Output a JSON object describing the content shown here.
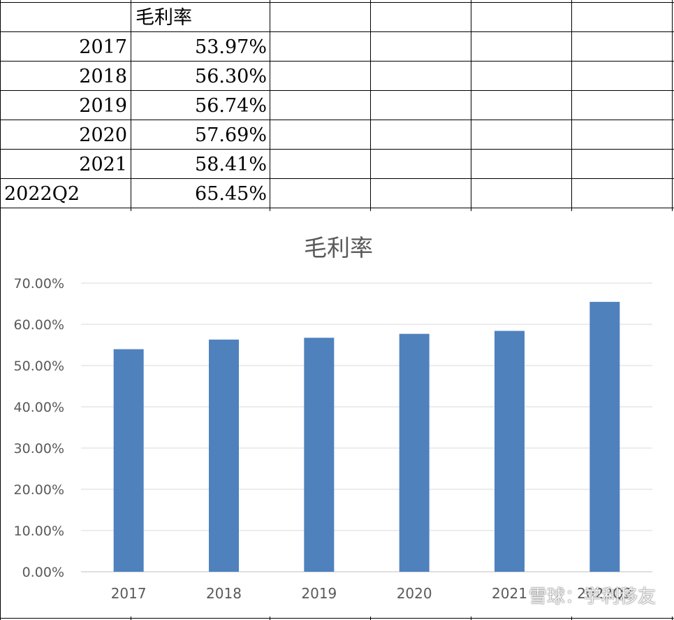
{
  "table": {
    "header": "毛利率",
    "rows": [
      {
        "year": "2017",
        "value": "53.97%"
      },
      {
        "year": "2018",
        "value": "56.30%"
      },
      {
        "year": "2019",
        "value": "56.74%"
      },
      {
        "year": "2020",
        "value": "57.69%"
      },
      {
        "year": "2021",
        "value": "58.41%"
      },
      {
        "year": "2022Q2",
        "value": "65.45%"
      }
    ]
  },
  "chart_data": {
    "type": "bar",
    "title": "毛利率",
    "categories": [
      "2017",
      "2018",
      "2019",
      "2020",
      "2021",
      "2022Q2"
    ],
    "values": [
      53.97,
      56.3,
      56.74,
      57.69,
      58.41,
      65.45
    ],
    "ylim": [
      0,
      70
    ],
    "yticks": [
      "0.00%",
      "10.00%",
      "20.00%",
      "30.00%",
      "40.00%",
      "50.00%",
      "60.00%",
      "70.00%"
    ],
    "grid": true,
    "bar_color": "#4f81bd"
  },
  "watermark": "雪球：学利移友"
}
